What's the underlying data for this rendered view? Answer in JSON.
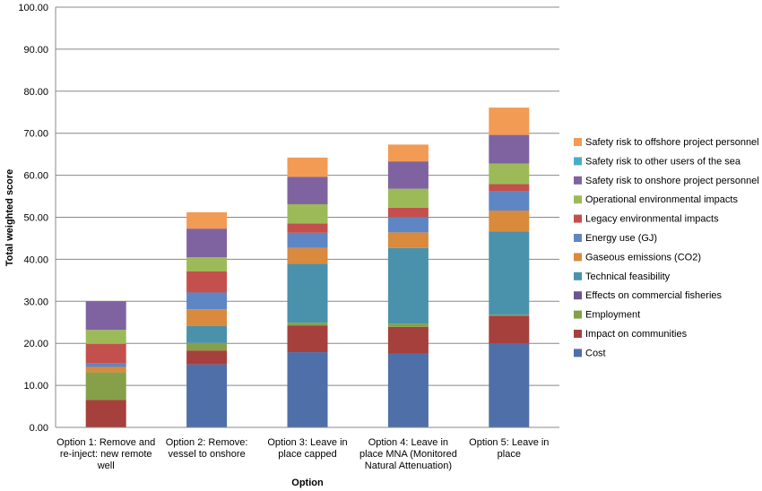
{
  "chart_data": {
    "type": "bar",
    "stacked": true,
    "title": "",
    "xlabel": "Option",
    "ylabel": "Total weighted score",
    "ylim": [
      0,
      100
    ],
    "ytick_step": 10,
    "ytick_labels": [
      "0.00",
      "10.00",
      "20.00",
      "30.00",
      "40.00",
      "50.00",
      "60.00",
      "70.00",
      "80.00",
      "90.00",
      "100.00"
    ],
    "grid": true,
    "legend_position": "right",
    "categories": [
      [
        "Option 1: Remove and",
        "re-inject: new remote",
        "well"
      ],
      [
        "Option 2: Remove:",
        "vessel to onshore"
      ],
      [
        "Option 3: Leave in",
        "place capped"
      ],
      [
        "Option 4: Leave in",
        "place MNA (Monitored",
        "Natural Attenuation)"
      ],
      [
        "Option 5: Leave in",
        "place"
      ]
    ],
    "series": [
      {
        "name": "Cost",
        "color": "#4F6FA8",
        "values": [
          0,
          15.0,
          17.9,
          17.5,
          19.9
        ]
      },
      {
        "name": "Impact on communities",
        "color": "#A6403D",
        "values": [
          6.5,
          3.3,
          6.3,
          6.4,
          6.7
        ]
      },
      {
        "name": "Employment",
        "color": "#86A04A",
        "values": [
          6.6,
          1.8,
          0.7,
          0.8,
          0.2
        ]
      },
      {
        "name": "Effects on commercial fisheries",
        "color": "#6B5590",
        "values": [
          0,
          0,
          0,
          0,
          0
        ]
      },
      {
        "name": "Technical feasibility",
        "color": "#4A92AC",
        "values": [
          0,
          4.0,
          14.0,
          18.0,
          19.8
        ]
      },
      {
        "name": "Gaseous emissions (CO2)",
        "color": "#D98A3D",
        "values": [
          1.3,
          4.0,
          3.8,
          3.7,
          5.0
        ]
      },
      {
        "name": "Energy use (GJ)",
        "color": "#5E86C4",
        "values": [
          0.8,
          4.0,
          3.6,
          3.6,
          4.6
        ]
      },
      {
        "name": "Legacy environmental impacts",
        "color": "#C4504D",
        "values": [
          4.7,
          5.0,
          2.2,
          2.3,
          1.7
        ]
      },
      {
        "name": "Operational environmental impacts",
        "color": "#9CBB58",
        "values": [
          3.3,
          3.4,
          4.6,
          4.5,
          4.9
        ]
      },
      {
        "name": "Safety risk to onshore project personnel",
        "color": "#7F63A1",
        "values": [
          6.8,
          6.8,
          6.5,
          6.5,
          6.8
        ]
      },
      {
        "name": "Safety risk to other users of the sea",
        "color": "#4BACC6",
        "values": [
          0,
          0,
          0,
          0,
          0
        ]
      },
      {
        "name": "Safety risk to offshore project personnel",
        "color": "#F29B55",
        "values": [
          0,
          3.9,
          4.6,
          4.0,
          6.5
        ]
      }
    ]
  }
}
